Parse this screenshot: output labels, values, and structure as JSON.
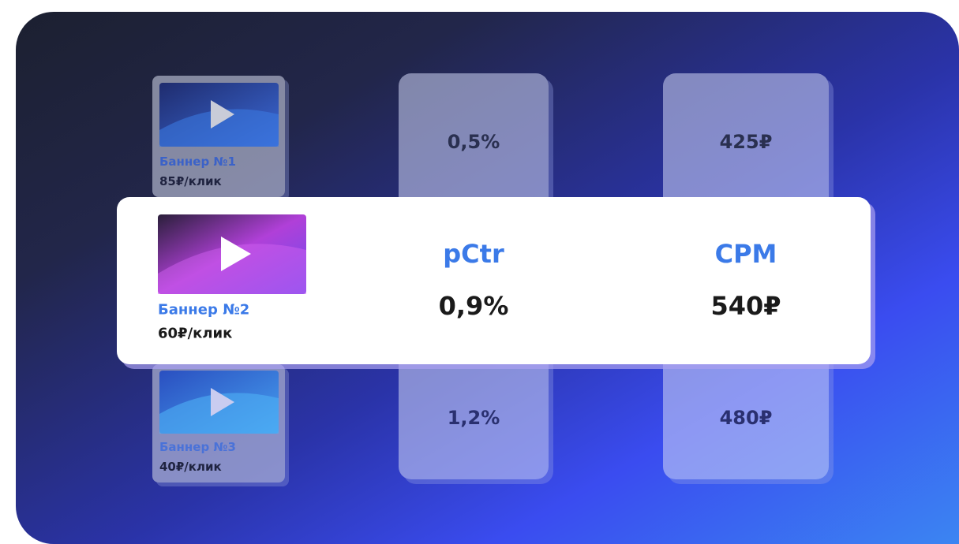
{
  "headers": {
    "pctr": "pCtr",
    "cpm": "CPM"
  },
  "rows": [
    {
      "banner": "Баннер №1",
      "price": "85₽/клик",
      "pctr": "0,5%",
      "cpm": "425₽"
    },
    {
      "banner": "Баннер №2",
      "price": "60₽/клик",
      "pctr": "0,9%",
      "cpm": "540₽"
    },
    {
      "banner": "Баннер №3",
      "price": "40₽/клик",
      "pctr": "1,2%",
      "cpm": "480₽"
    }
  ]
}
